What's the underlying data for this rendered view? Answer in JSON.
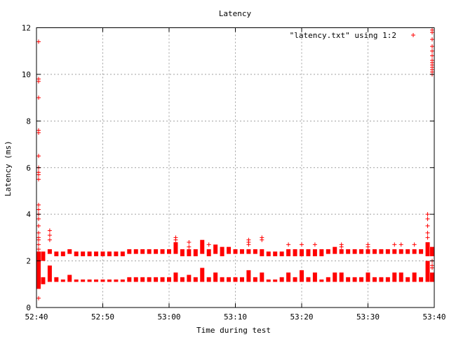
{
  "chart_data": {
    "type": "scatter",
    "title": "Latency",
    "xlabel": "Time during test",
    "ylabel": "Latency (ms)",
    "xlim": [
      "52:40",
      "53:40"
    ],
    "ylim": [
      0,
      12
    ],
    "x_ticks": [
      "52:40",
      "52:50",
      "53:00",
      "53:10",
      "53:20",
      "53:30",
      "53:40"
    ],
    "y_ticks": [
      0,
      2,
      4,
      6,
      8,
      10,
      12
    ],
    "grid": true,
    "legend_position": "top-right",
    "marker": "+",
    "color": "#ff0000",
    "series": [
      {
        "name": "\"latency.txt\" using 1:2",
        "clusters": [
          {
            "t": "52:40",
            "lower": [
              0.8,
              2.0
            ],
            "upper": [
              2.0,
              2.4
            ],
            "outliers": [
              2.5,
              2.7,
              2.9,
              3.0,
              3.2,
              3.5,
              3.8,
              4.0,
              4.2,
              4.4,
              5.5,
              5.7,
              5.8,
              6.0,
              6.5,
              7.5,
              7.6,
              9.0,
              9.7,
              9.8,
              11.4,
              0.4
            ]
          },
          {
            "t": "52:41",
            "lower": [
              1.0,
              1.3
            ],
            "upper": [
              2.0,
              2.4
            ],
            "outliers": []
          },
          {
            "t": "52:42",
            "lower": [
              1.1,
              1.8
            ],
            "upper": [
              2.3,
              2.5
            ],
            "outliers": [
              2.9,
              3.1,
              3.3
            ]
          },
          {
            "t": "52:43",
            "lower": [
              1.1,
              1.3
            ],
            "upper": [
              2.2,
              2.4
            ],
            "outliers": []
          },
          {
            "t": "52:44",
            "lower": [
              1.1,
              1.2
            ],
            "upper": [
              2.2,
              2.4
            ],
            "outliers": []
          },
          {
            "t": "52:45",
            "lower": [
              1.1,
              1.4
            ],
            "upper": [
              2.3,
              2.5
            ],
            "outliers": []
          },
          {
            "t": "52:46",
            "lower": [
              1.1,
              1.2
            ],
            "upper": [
              2.2,
              2.4
            ],
            "outliers": []
          },
          {
            "t": "52:47",
            "lower": [
              1.1,
              1.2
            ],
            "upper": [
              2.2,
              2.4
            ],
            "outliers": []
          },
          {
            "t": "52:48",
            "lower": [
              1.1,
              1.2
            ],
            "upper": [
              2.2,
              2.4
            ],
            "outliers": []
          },
          {
            "t": "52:49",
            "lower": [
              1.1,
              1.2
            ],
            "upper": [
              2.2,
              2.4
            ],
            "outliers": []
          },
          {
            "t": "52:50",
            "lower": [
              1.1,
              1.2
            ],
            "upper": [
              2.2,
              2.4
            ],
            "outliers": []
          },
          {
            "t": "52:51",
            "lower": [
              1.1,
              1.2
            ],
            "upper": [
              2.2,
              2.4
            ],
            "outliers": []
          },
          {
            "t": "52:52",
            "lower": [
              1.1,
              1.2
            ],
            "upper": [
              2.2,
              2.4
            ],
            "outliers": []
          },
          {
            "t": "52:53",
            "lower": [
              1.1,
              1.2
            ],
            "upper": [
              2.2,
              2.4
            ],
            "outliers": []
          },
          {
            "t": "52:54",
            "lower": [
              1.1,
              1.3
            ],
            "upper": [
              2.3,
              2.5
            ],
            "outliers": []
          },
          {
            "t": "52:55",
            "lower": [
              1.1,
              1.3
            ],
            "upper": [
              2.3,
              2.5
            ],
            "outliers": []
          },
          {
            "t": "52:56",
            "lower": [
              1.1,
              1.3
            ],
            "upper": [
              2.3,
              2.5
            ],
            "outliers": []
          },
          {
            "t": "52:57",
            "lower": [
              1.1,
              1.3
            ],
            "upper": [
              2.3,
              2.5
            ],
            "outliers": []
          },
          {
            "t": "52:58",
            "lower": [
              1.1,
              1.3
            ],
            "upper": [
              2.3,
              2.5
            ],
            "outliers": []
          },
          {
            "t": "52:59",
            "lower": [
              1.1,
              1.3
            ],
            "upper": [
              2.3,
              2.5
            ],
            "outliers": []
          },
          {
            "t": "53:00",
            "lower": [
              1.1,
              1.3
            ],
            "upper": [
              2.3,
              2.5
            ],
            "outliers": []
          },
          {
            "t": "53:01",
            "lower": [
              1.1,
              1.5
            ],
            "upper": [
              2.3,
              2.8
            ],
            "outliers": [
              2.9,
              3.0
            ]
          },
          {
            "t": "53:02",
            "lower": [
              1.1,
              1.3
            ],
            "upper": [
              2.2,
              2.5
            ],
            "outliers": []
          },
          {
            "t": "53:03",
            "lower": [
              1.1,
              1.4
            ],
            "upper": [
              2.2,
              2.5
            ],
            "outliers": [
              2.6,
              2.8
            ]
          },
          {
            "t": "53:04",
            "lower": [
              1.1,
              1.3
            ],
            "upper": [
              2.2,
              2.5
            ],
            "outliers": []
          },
          {
            "t": "53:05",
            "lower": [
              1.1,
              1.7
            ],
            "upper": [
              2.3,
              2.9
            ],
            "outliers": []
          },
          {
            "t": "53:06",
            "lower": [
              1.1,
              1.3
            ],
            "upper": [
              2.2,
              2.5
            ],
            "outliers": [
              2.7
            ]
          },
          {
            "t": "53:07",
            "lower": [
              1.1,
              1.5
            ],
            "upper": [
              2.3,
              2.7
            ],
            "outliers": []
          },
          {
            "t": "53:08",
            "lower": [
              1.1,
              1.3
            ],
            "upper": [
              2.2,
              2.6
            ],
            "outliers": []
          },
          {
            "t": "53:09",
            "lower": [
              1.1,
              1.3
            ],
            "upper": [
              2.3,
              2.6
            ],
            "outliers": []
          },
          {
            "t": "53:10",
            "lower": [
              1.1,
              1.3
            ],
            "upper": [
              2.3,
              2.5
            ],
            "outliers": []
          },
          {
            "t": "53:11",
            "lower": [
              1.1,
              1.3
            ],
            "upper": [
              2.3,
              2.5
            ],
            "outliers": []
          },
          {
            "t": "53:12",
            "lower": [
              1.1,
              1.6
            ],
            "upper": [
              2.3,
              2.5
            ],
            "outliers": [
              2.7,
              2.8,
              2.9
            ]
          },
          {
            "t": "53:13",
            "lower": [
              1.1,
              1.3
            ],
            "upper": [
              2.3,
              2.5
            ],
            "outliers": []
          },
          {
            "t": "53:14",
            "lower": [
              1.1,
              1.5
            ],
            "upper": [
              2.2,
              2.5
            ],
            "outliers": [
              2.9,
              3.0
            ]
          },
          {
            "t": "53:15",
            "lower": [
              1.1,
              1.2
            ],
            "upper": [
              2.2,
              2.4
            ],
            "outliers": []
          },
          {
            "t": "53:16",
            "lower": [
              1.1,
              1.2
            ],
            "upper": [
              2.2,
              2.4
            ],
            "outliers": []
          },
          {
            "t": "53:17",
            "lower": [
              1.1,
              1.3
            ],
            "upper": [
              2.2,
              2.4
            ],
            "outliers": []
          },
          {
            "t": "53:18",
            "lower": [
              1.1,
              1.5
            ],
            "upper": [
              2.2,
              2.5
            ],
            "outliers": [
              2.7
            ]
          },
          {
            "t": "53:19",
            "lower": [
              1.1,
              1.3
            ],
            "upper": [
              2.2,
              2.5
            ],
            "outliers": []
          },
          {
            "t": "53:20",
            "lower": [
              1.1,
              1.6
            ],
            "upper": [
              2.2,
              2.5
            ],
            "outliers": [
              2.7
            ]
          },
          {
            "t": "53:21",
            "lower": [
              1.1,
              1.3
            ],
            "upper": [
              2.2,
              2.5
            ],
            "outliers": []
          },
          {
            "t": "53:22",
            "lower": [
              1.1,
              1.5
            ],
            "upper": [
              2.2,
              2.5
            ],
            "outliers": [
              2.7
            ]
          },
          {
            "t": "53:23",
            "lower": [
              1.1,
              1.2
            ],
            "upper": [
              2.2,
              2.5
            ],
            "outliers": []
          },
          {
            "t": "53:24",
            "lower": [
              1.1,
              1.3
            ],
            "upper": [
              2.3,
              2.5
            ],
            "outliers": []
          },
          {
            "t": "53:25",
            "lower": [
              1.1,
              1.5
            ],
            "upper": [
              2.3,
              2.6
            ],
            "outliers": []
          },
          {
            "t": "53:26",
            "lower": [
              1.1,
              1.5
            ],
            "upper": [
              2.3,
              2.5
            ],
            "outliers": [
              2.6,
              2.7
            ]
          },
          {
            "t": "53:27",
            "lower": [
              1.1,
              1.3
            ],
            "upper": [
              2.3,
              2.5
            ],
            "outliers": []
          },
          {
            "t": "53:28",
            "lower": [
              1.1,
              1.3
            ],
            "upper": [
              2.3,
              2.5
            ],
            "outliers": []
          },
          {
            "t": "53:29",
            "lower": [
              1.1,
              1.3
            ],
            "upper": [
              2.3,
              2.5
            ],
            "outliers": []
          },
          {
            "t": "53:30",
            "lower": [
              1.1,
              1.5
            ],
            "upper": [
              2.3,
              2.5
            ],
            "outliers": [
              2.6,
              2.7
            ]
          },
          {
            "t": "53:31",
            "lower": [
              1.1,
              1.3
            ],
            "upper": [
              2.3,
              2.5
            ],
            "outliers": []
          },
          {
            "t": "53:32",
            "lower": [
              1.1,
              1.3
            ],
            "upper": [
              2.3,
              2.5
            ],
            "outliers": []
          },
          {
            "t": "53:33",
            "lower": [
              1.1,
              1.3
            ],
            "upper": [
              2.3,
              2.5
            ],
            "outliers": []
          },
          {
            "t": "53:34",
            "lower": [
              1.1,
              1.5
            ],
            "upper": [
              2.3,
              2.5
            ],
            "outliers": [
              2.7
            ]
          },
          {
            "t": "53:35",
            "lower": [
              1.1,
              1.5
            ],
            "upper": [
              2.3,
              2.5
            ],
            "outliers": [
              2.7
            ]
          },
          {
            "t": "53:36",
            "lower": [
              1.1,
              1.3
            ],
            "upper": [
              2.3,
              2.5
            ],
            "outliers": []
          },
          {
            "t": "53:37",
            "lower": [
              1.1,
              1.5
            ],
            "upper": [
              2.3,
              2.5
            ],
            "outliers": [
              2.7
            ]
          },
          {
            "t": "53:38",
            "lower": [
              1.1,
              1.3
            ],
            "upper": [
              2.3,
              2.5
            ],
            "outliers": []
          },
          {
            "t": "53:39",
            "lower": [
              1.1,
              2.0
            ],
            "upper": [
              2.2,
              2.8
            ],
            "outliers": [
              3.0,
              3.2,
              3.5,
              3.8,
              4.0
            ]
          },
          {
            "t": "53:40",
            "lower": [
              1.1,
              1.5
            ],
            "upper": [
              2.2,
              2.6
            ],
            "outliers": [
              1.7,
              1.8,
              2.0,
              10.0,
              10.1,
              10.2,
              10.3,
              10.4,
              10.5,
              10.6,
              10.8,
              11.0,
              11.2,
              11.5,
              11.8,
              11.9
            ]
          }
        ]
      }
    ]
  }
}
